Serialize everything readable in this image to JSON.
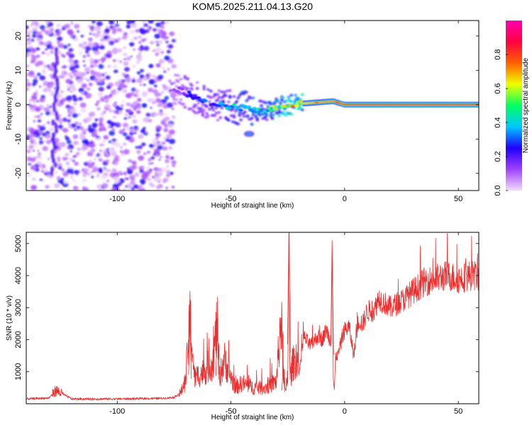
{
  "title": "KOM5.2025.211.04.13.G20",
  "chart_data": [
    {
      "type": "heatmap",
      "xlabel": "Height of straight line (km)",
      "ylabel": "Frequency (Hz)",
      "xlim": [
        -140,
        59
      ],
      "ylim": [
        -25,
        24.5
      ],
      "xticks": [
        -100,
        -50,
        0,
        50
      ],
      "yticks": [
        -20,
        -10,
        0,
        10,
        20
      ],
      "colorbar": {
        "label": "Normalized spectral amplitude",
        "range": [
          0,
          1
        ],
        "ticks": [
          "0.0",
          "0.2",
          "0.4",
          "0.6",
          "0.8"
        ],
        "colors": [
          "#f2dcff",
          "#a040ff",
          "#2000ff",
          "#00c8ff",
          "#00ff60",
          "#f0ff00",
          "#ff6000",
          "#ff0040",
          "#ff00b0"
        ]
      },
      "features": [
        {
          "kind": "noise-speckle",
          "x_range": [
            -140,
            -75
          ],
          "y_range": [
            -25,
            24.5
          ],
          "amplitude": 0.15
        },
        {
          "kind": "streak",
          "x": -128,
          "y_range": [
            -20,
            16
          ],
          "amplitude": 0.18
        },
        {
          "kind": "ridge",
          "x": [
            -75,
            -65,
            -55,
            -45,
            -35,
            -25,
            -15,
            -5,
            0,
            59
          ],
          "y": [
            5,
            2,
            0,
            -1,
            -2,
            0,
            0.5,
            1,
            0,
            0
          ],
          "amplitude": [
            0.15,
            0.3,
            0.35,
            0.45,
            0.5,
            0.7,
            0.8,
            0.85,
            0.9,
            0.9
          ]
        },
        {
          "kind": "blob",
          "x": -42,
          "y": -8.5,
          "amplitude": 0.35
        }
      ]
    },
    {
      "type": "line",
      "xlabel": "Height of straight line (km)",
      "ylabel": "SNR (10 * v/v)",
      "xlim": [
        -140,
        59
      ],
      "ylim": [
        0,
        5350
      ],
      "xticks": [
        -100,
        -50,
        0,
        50
      ],
      "yticks": [
        1000,
        2000,
        3000,
        4000,
        5000
      ],
      "color": "#e83030",
      "x": [
        -140,
        -130,
        -127,
        -120,
        -110,
        -100,
        -90,
        -80,
        -75,
        -72,
        -70,
        -68,
        -66,
        -62,
        -58,
        -56,
        -55,
        -53,
        -51,
        -48,
        -45,
        -40,
        -35,
        -30,
        -28,
        -27,
        -26,
        -25,
        -24.5,
        -24,
        -23,
        -21,
        -20,
        -18,
        -15,
        -12,
        -10,
        -8,
        -6,
        -5.5,
        -5,
        -4.5,
        -4,
        -3,
        -1,
        0,
        2,
        4,
        6,
        8,
        10,
        13,
        15,
        20,
        25,
        30,
        35,
        40,
        45,
        50,
        55,
        59
      ],
      "y": [
        150,
        180,
        420,
        150,
        150,
        150,
        160,
        170,
        200,
        350,
        700,
        2600,
        800,
        1000,
        1300,
        2500,
        800,
        1400,
        1000,
        500,
        650,
        500,
        500,
        700,
        2700,
        1200,
        300,
        900,
        5300,
        800,
        1200,
        1500,
        900,
        2100,
        1800,
        2100,
        2000,
        2300,
        1900,
        5100,
        800,
        400,
        1500,
        1500,
        2100,
        2300,
        2400,
        1500,
        2600,
        2500,
        2900,
        2900,
        3300,
        3000,
        3200,
        3500,
        3800,
        3900,
        4000,
        3900,
        4000,
        4000
      ]
    }
  ]
}
